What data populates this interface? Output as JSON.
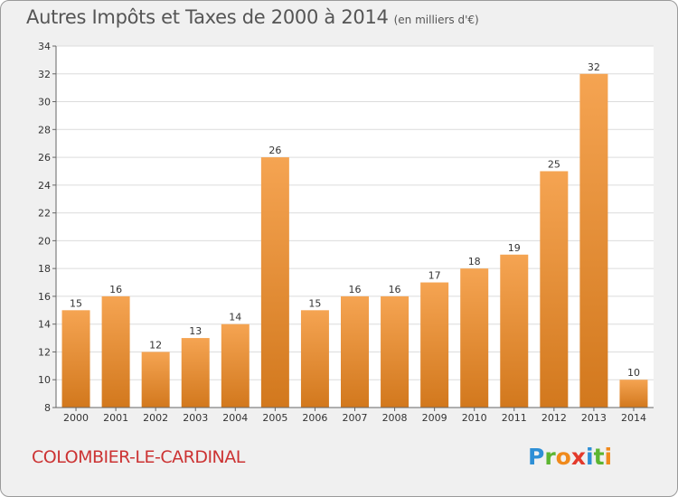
{
  "header": {
    "title": "Autres Impôts et Taxes de 2000 à 2014",
    "unit": "(en milliers d'€)"
  },
  "footer": {
    "commune": "COLOMBIER-LE-CARDINAL",
    "logo_letters": [
      "P",
      "r",
      "o",
      "x",
      "i",
      "t",
      "i"
    ],
    "logo_colors": [
      "#2e8fd6",
      "#5cb531",
      "#f08a1c",
      "#e33a2b",
      "#2e8fd6",
      "#5cb531",
      "#f08a1c"
    ]
  },
  "colors": {
    "bar_light": "#f5a452",
    "bar_dark": "#d2781d",
    "grid": "#dcdcdc",
    "axis": "#666666",
    "text": "#333333"
  },
  "chart_data": {
    "type": "bar",
    "title": "Autres Impôts et Taxes de 2000 à 2014",
    "subtitle": "(en milliers d'€)",
    "categories": [
      "2000",
      "2001",
      "2002",
      "2003",
      "2004",
      "2005",
      "2006",
      "2007",
      "2008",
      "2009",
      "2010",
      "2011",
      "2012",
      "2013",
      "2014"
    ],
    "values": [
      15,
      16,
      12,
      13,
      14,
      26,
      15,
      16,
      16,
      17,
      18,
      19,
      25,
      32,
      10
    ],
    "ylim": [
      8,
      34
    ],
    "yticks": [
      8,
      10,
      12,
      14,
      16,
      18,
      20,
      22,
      24,
      26,
      28,
      30,
      32,
      34
    ],
    "grid": true,
    "data_labels": true
  }
}
